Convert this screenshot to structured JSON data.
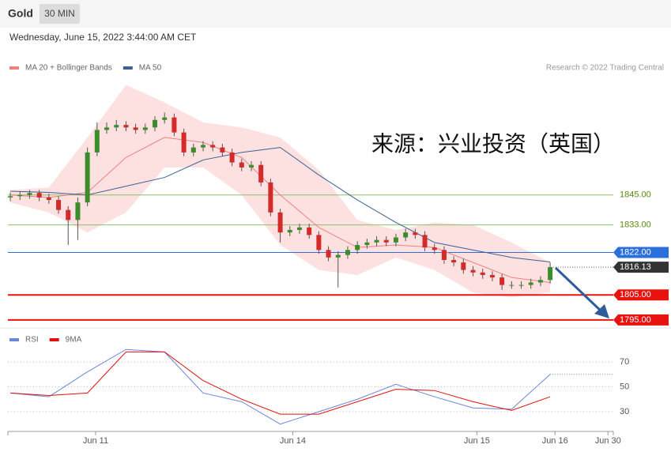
{
  "header": {
    "symbol": "Gold",
    "interval": "30 MIN",
    "timestamp": "Wednesday, June 15, 2022 3:44:00 AM CET"
  },
  "chart_data": [
    {
      "type": "candlestick",
      "source": "Research © 2022 Trading Central",
      "annotation": "来源：兴业投资（英国）",
      "xlim": [
        -0.25,
        62.55
      ],
      "ylim": [
        1791.5,
        1892
      ],
      "up_color": "#3c8c2c",
      "down_color": "#d42a2a",
      "open": [
        1844,
        1844.5,
        1845,
        1845.8,
        1844,
        1843,
        1839,
        1835,
        1842,
        1862,
        1871,
        1872,
        1873,
        1872,
        1871,
        1872,
        1875,
        1876,
        1870,
        1862,
        1864,
        1865,
        1864,
        1862,
        1858,
        1856,
        1857,
        1850,
        1838,
        1830,
        1831,
        1832,
        1829,
        1823,
        1820,
        1821,
        1823,
        1825,
        1826,
        1827,
        1826,
        1828,
        1830,
        1829,
        1824,
        1823,
        1819,
        1818,
        1815,
        1814,
        1813,
        1812,
        1809,
        1809,
        1809,
        1810,
        1811
      ],
      "high": [
        1846,
        1846.5,
        1847,
        1847,
        1845.5,
        1844.5,
        1840.5,
        1844,
        1864,
        1874,
        1874,
        1875,
        1874.5,
        1873.5,
        1873.5,
        1876.5,
        1878,
        1877.5,
        1871.5,
        1865.5,
        1866.5,
        1866.5,
        1865.5,
        1863.5,
        1859.5,
        1858.5,
        1858.5,
        1851.5,
        1839.5,
        1832.5,
        1833.5,
        1833.5,
        1830.5,
        1824.5,
        1822.5,
        1824.5,
        1826.5,
        1827.5,
        1828.5,
        1828.5,
        1829.5,
        1831.5,
        1831.5,
        1830.5,
        1825.5,
        1824.5,
        1820.5,
        1819.5,
        1816.5,
        1815.5,
        1814.5,
        1813.5,
        1810.5,
        1810.5,
        1811.5,
        1812.5,
        1818
      ],
      "low": [
        1842.5,
        1843,
        1843.5,
        1842.5,
        1841.5,
        1837.5,
        1825,
        1827,
        1840.5,
        1860.5,
        1869.5,
        1870.5,
        1870.5,
        1869.5,
        1869.5,
        1870.5,
        1873.5,
        1868.5,
        1860.5,
        1860.5,
        1862.5,
        1862.5,
        1860.5,
        1856.5,
        1854.5,
        1854.5,
        1848.5,
        1836.5,
        1826,
        1828.5,
        1829.5,
        1827.5,
        1821.5,
        1818.5,
        1808,
        1819.5,
        1821.5,
        1823.5,
        1824.5,
        1824.5,
        1824.5,
        1826.5,
        1827.5,
        1822.5,
        1821.5,
        1817.5,
        1816.5,
        1813.5,
        1812.5,
        1811.5,
        1810.5,
        1807,
        1807.5,
        1807.5,
        1807.5,
        1808.5,
        1809.5
      ],
      "close": [
        1844.5,
        1845,
        1845.8,
        1844,
        1843,
        1839,
        1835,
        1842,
        1862,
        1871,
        1872,
        1873,
        1872,
        1871,
        1872,
        1875,
        1876,
        1870,
        1862,
        1864,
        1865,
        1864,
        1862,
        1858,
        1856,
        1857,
        1850,
        1838,
        1830,
        1831,
        1832,
        1829,
        1823,
        1820,
        1821,
        1823,
        1825,
        1826,
        1827,
        1826,
        1828,
        1830,
        1829,
        1824,
        1823,
        1819,
        1818,
        1815,
        1814,
        1813,
        1812,
        1809,
        1809,
        1809,
        1810,
        1811,
        1816.13
      ],
      "last_label": "1816.13",
      "overlay_x": [
        0,
        4,
        8,
        12,
        16,
        20,
        24,
        28,
        32,
        36,
        40,
        44,
        48,
        52,
        56
      ],
      "series": [
        {
          "name": "MA 20 + Bollinger Bands",
          "color": "#f08080",
          "band_color": "#fde0e0",
          "values": [
            1845,
            1844,
            1846,
            1860,
            1868,
            1866,
            1860,
            1845,
            1832,
            1824,
            1825,
            1824,
            1818,
            1812,
            1810
          ],
          "upper": [
            1847,
            1848,
            1868,
            1889,
            1882,
            1874,
            1872,
            1868,
            1855,
            1835,
            1831,
            1834,
            1833,
            1826,
            1818
          ],
          "lower": [
            1842,
            1838,
            1830,
            1838,
            1856,
            1856,
            1845,
            1825,
            1815,
            1813,
            1820,
            1815,
            1806,
            1804,
            1806
          ]
        },
        {
          "name": "MA 50",
          "color": "#3d5f94",
          "values": [
            1846.5,
            1846,
            1845,
            1848.5,
            1852,
            1859,
            1862,
            1864,
            1853,
            1843,
            1834,
            1826,
            1823,
            1820,
            1818.2
          ]
        }
      ],
      "levels": [
        {
          "value": 1845,
          "label": "1845.00",
          "color": "#8cc06a",
          "style": "text"
        },
        {
          "value": 1833,
          "label": "1833.00",
          "color": "#8cc06a",
          "style": "text"
        },
        {
          "value": 1822,
          "label": "1822.00",
          "color": "#2a6fdb",
          "style": "box"
        },
        {
          "value": 1805,
          "label": "1805.00",
          "color": "#e8130f",
          "style": "box"
        },
        {
          "value": 1795,
          "label": "1795.00",
          "color": "#e8130f",
          "style": "box"
        }
      ]
    },
    {
      "type": "line",
      "xlim": [
        -0.25,
        62.55
      ],
      "ylim": [
        15,
        83
      ],
      "yticks": [
        30,
        50,
        70
      ],
      "x": [
        0,
        4,
        8,
        12,
        16,
        20,
        24,
        28,
        32,
        36,
        40,
        44,
        48,
        52,
        56
      ],
      "series": [
        {
          "name": "RSI",
          "color": "#6a86d8",
          "values": [
            45,
            42,
            62,
            80,
            78,
            45,
            38,
            20,
            30,
            40,
            52,
            42,
            33,
            32,
            60
          ]
        },
        {
          "name": "9MA",
          "color": "#e01010",
          "values": [
            45,
            43,
            45,
            78,
            78,
            55,
            40,
            28,
            28,
            38,
            48,
            47,
            38,
            31,
            42
          ]
        }
      ],
      "xticks": [
        {
          "value": 8.85,
          "label": "Jun 11"
        },
        {
          "value": 29.3,
          "label": "Jun 14"
        },
        {
          "value": 48.4,
          "label": "Jun 15"
        },
        {
          "value": 56.5,
          "label": "Jun 16"
        },
        {
          "value": 62,
          "label": "Jun 30"
        }
      ]
    }
  ]
}
